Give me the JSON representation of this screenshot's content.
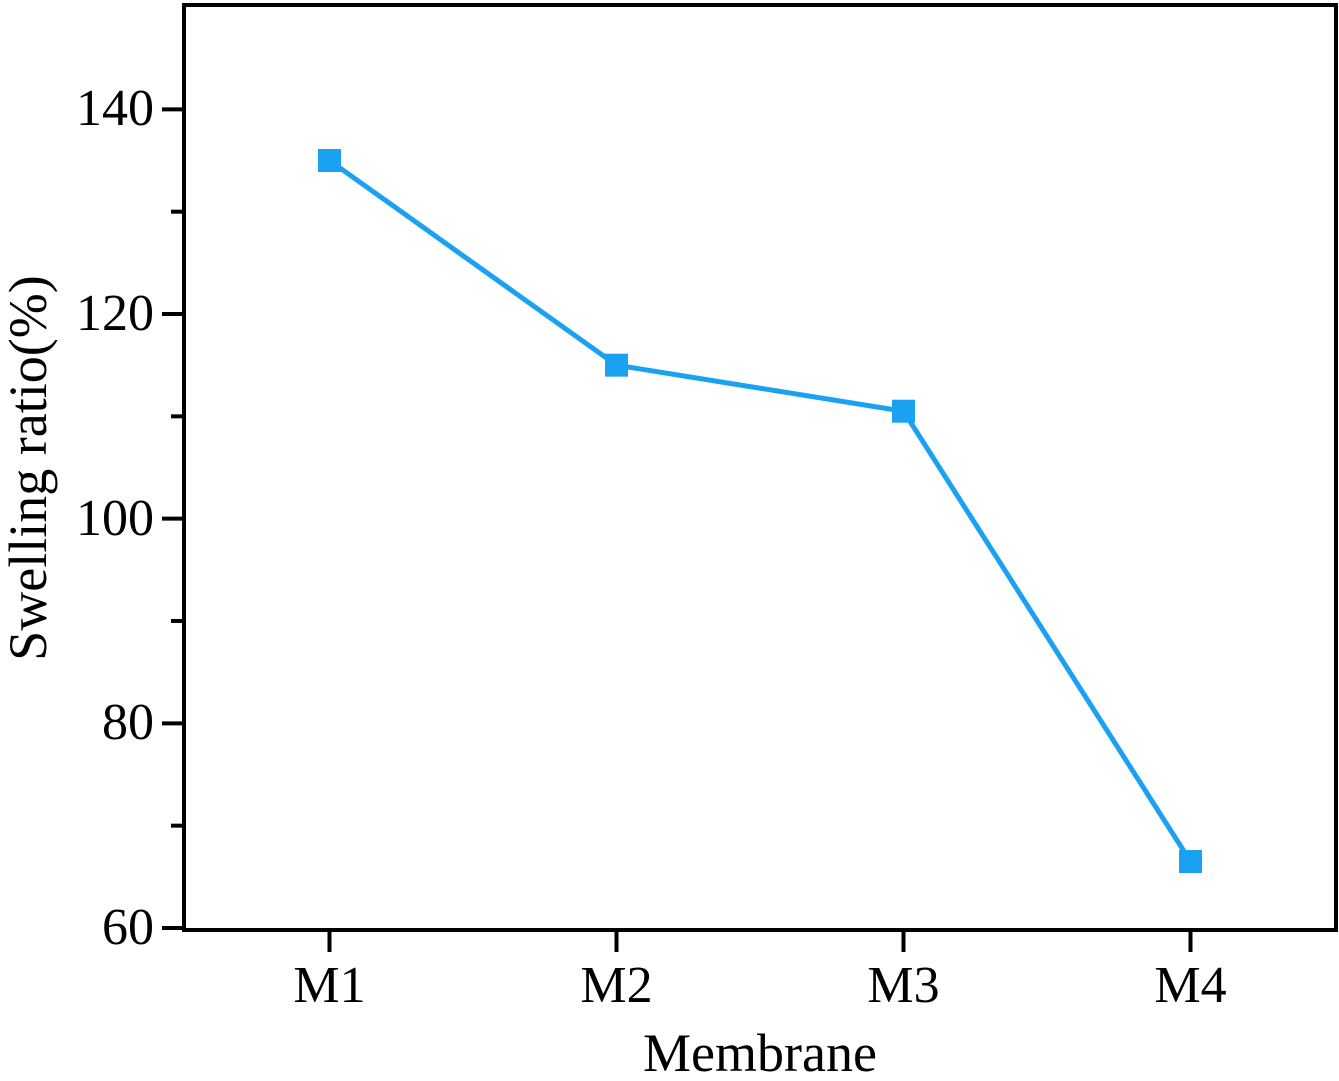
{
  "chart_data": {
    "type": "line",
    "categories": [
      "M1",
      "M2",
      "M3",
      "M4"
    ],
    "series": [
      {
        "name": "Swelling ratio",
        "values": [
          135,
          115,
          110.5,
          66.5
        ]
      }
    ],
    "title": "",
    "xlabel": "Membrane",
    "ylabel": "Swelling ratio(%)",
    "ylim": [
      60,
      150
    ],
    "y_major_ticks": [
      60,
      80,
      100,
      120,
      140
    ],
    "y_minor_ticks": [
      70,
      90,
      110,
      130
    ],
    "grid": false,
    "legend_position": "none",
    "marker_shape": "square",
    "colors": {
      "line": "#1BA1F2",
      "marker": "#1BA1F2",
      "axis": "#000000",
      "text": "#000000",
      "background": "#FFFFFF"
    }
  }
}
